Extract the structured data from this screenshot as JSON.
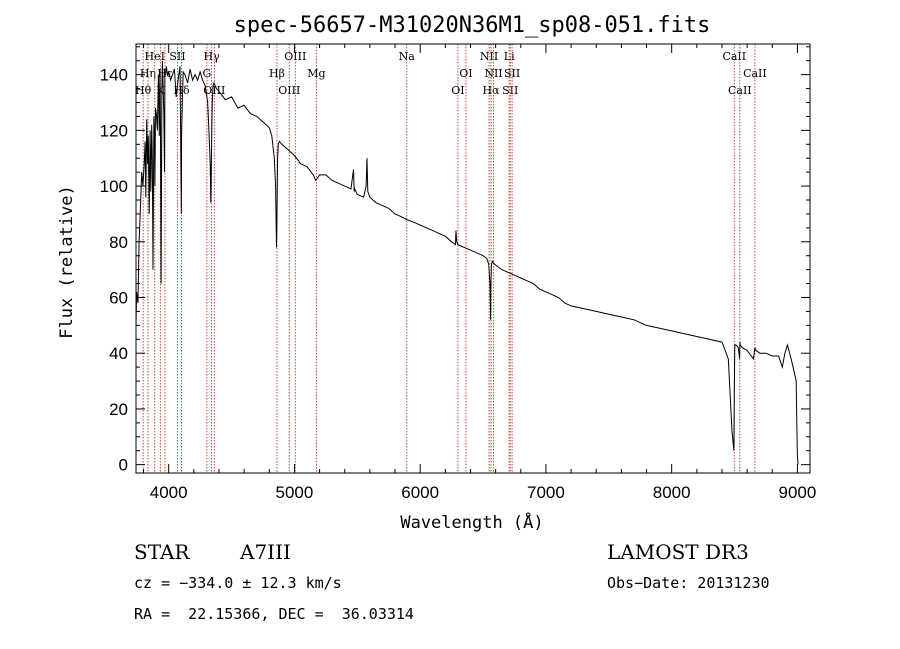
{
  "chart_data": {
    "type": "line",
    "title": "spec-56657-M31020N36M1_sp08-051.fits",
    "xlabel": "Wavelength (Å)",
    "ylabel": "Flux (relative)",
    "xlim": [
      3740,
      9100
    ],
    "ylim": [
      -3,
      151
    ],
    "xticks": [
      4000,
      5000,
      6000,
      7000,
      8000,
      9000
    ],
    "yticks": [
      0,
      20,
      40,
      60,
      80,
      100,
      120,
      140
    ],
    "series": [
      {
        "name": "spectrum",
        "x": [
          3740,
          3745,
          3755,
          3765,
          3775,
          3785,
          3795,
          3805,
          3812,
          3818,
          3825,
          3832,
          3838,
          3845,
          3852,
          3858,
          3865,
          3870,
          3875,
          3882,
          3888,
          3890,
          3895,
          3902,
          3910,
          3918,
          3925,
          3930,
          3935,
          3940,
          3946,
          3950,
          3955,
          3962,
          3967,
          3970,
          3975,
          3982,
          3990,
          4000,
          4015,
          4030,
          4045,
          4060,
          4075,
          4090,
          4095,
          4100,
          4103,
          4108,
          4115,
          4130,
          4150,
          4170,
          4190,
          4210,
          4230,
          4250,
          4270,
          4290,
          4310,
          4320,
          4330,
          4335,
          4340,
          4345,
          4352,
          4360,
          4380,
          4400,
          4450,
          4500,
          4550,
          4600,
          4650,
          4700,
          4750,
          4800,
          4820,
          4840,
          4850,
          4857,
          4861,
          4866,
          4872,
          4880,
          4900,
          4950,
          5000,
          5050,
          5100,
          5150,
          5170,
          5200,
          5250,
          5300,
          5350,
          5400,
          5450,
          5470,
          5475,
          5480,
          5500,
          5550,
          5570,
          5577,
          5583,
          5600,
          5650,
          5700,
          5750,
          5800,
          5850,
          5890,
          5950,
          6000,
          6050,
          6100,
          6150,
          6200,
          6250,
          6280,
          6285,
          6290,
          6300,
          6350,
          6400,
          6450,
          6500,
          6530,
          6545,
          6555,
          6560,
          6563,
          6567,
          6575,
          6590,
          6620,
          6650,
          6700,
          6750,
          6800,
          6850,
          6900,
          6950,
          7000,
          7050,
          7100,
          7150,
          7200,
          7300,
          7400,
          7500,
          7600,
          7700,
          7800,
          7900,
          8000,
          8100,
          8200,
          8300,
          8400,
          8450,
          8480,
          8495,
          8498,
          8502,
          8510,
          8530,
          8540,
          8543,
          8546,
          8560,
          8600,
          8650,
          8662,
          8670,
          8700,
          8750,
          8800,
          8850,
          8880,
          8900,
          8920,
          8950,
          8970,
          8990,
          8995,
          9000,
          9005
        ],
        "values": [
          50,
          62,
          58,
          80,
          92,
          105,
          100,
          108,
          116,
          96,
          124,
          108,
          118,
          90,
          120,
          98,
          122,
          110,
          70,
          125,
          118,
          100,
          128,
          126,
          120,
          140,
          118,
          142,
          120,
          65,
          135,
          145,
          138,
          125,
          105,
          140,
          140,
          143,
          140,
          141,
          138,
          140,
          142,
          132,
          138,
          143,
          120,
          90,
          118,
          130,
          141,
          140,
          137,
          142,
          138,
          140,
          138,
          141,
          138,
          136,
          130,
          120,
          108,
          94,
          110,
          128,
          136,
          137,
          135,
          134,
          131,
          132,
          128,
          129,
          126,
          125,
          123,
          121,
          118,
          110,
          100,
          78,
          90,
          110,
          115,
          116,
          115,
          113,
          111,
          108,
          107,
          104,
          102,
          104,
          104,
          102,
          101,
          100,
          99,
          106,
          98,
          99,
          97,
          96,
          100,
          110,
          98,
          96,
          94,
          93,
          92,
          90,
          89,
          88,
          87,
          86,
          85,
          84,
          83,
          82,
          80,
          79,
          84,
          80,
          79,
          78,
          77,
          76,
          75,
          74,
          72,
          65,
          52,
          66,
          72,
          73,
          72,
          71,
          70,
          69,
          68,
          67,
          66,
          65,
          63,
          62,
          61,
          60,
          58,
          57,
          56,
          55,
          54,
          53,
          52,
          50,
          49,
          48,
          47,
          46,
          45,
          44,
          38,
          12,
          5,
          25,
          43,
          43,
          42,
          38,
          44,
          43,
          42,
          41,
          38,
          42,
          41,
          40,
          40,
          39,
          39,
          35,
          40,
          43,
          38,
          34,
          30,
          15,
          3,
          0
        ]
      }
    ],
    "spectral_lines": [
      {
        "name": "Hθ",
        "wavelength": 3797,
        "row": 3
      },
      {
        "name": "Hη",
        "wavelength": 3835,
        "row": 2
      },
      {
        "name": "HeI",
        "wavelength": 3889,
        "row": 1
      },
      {
        "name": "K",
        "wavelength": 3934,
        "row": 3
      },
      {
        "name": "Hε",
        "wavelength": 3970,
        "row": 2
      },
      {
        "name": "SII",
        "wavelength": 4070,
        "row": 1
      },
      {
        "name": "Hδ",
        "wavelength": 4102,
        "row": 3
      },
      {
        "name": "G",
        "wavelength": 4304,
        "row": 2
      },
      {
        "name": "Hγ",
        "wavelength": 4341,
        "row": 1
      },
      {
        "name": "OIII",
        "wavelength": 4363,
        "row": 3
      },
      {
        "name": "Hβ",
        "wavelength": 4861,
        "row": 2
      },
      {
        "name": "OIII",
        "wavelength": 4959,
        "row": 3
      },
      {
        "name": "OIII",
        "wavelength": 5007,
        "row": 1
      },
      {
        "name": "Mg",
        "wavelength": 5175,
        "row": 2
      },
      {
        "name": "Na",
        "wavelength": 5893,
        "row": 1
      },
      {
        "name": "OI",
        "wavelength": 6300,
        "row": 3
      },
      {
        "name": "OI",
        "wavelength": 6364,
        "row": 2
      },
      {
        "name": "NII",
        "wavelength": 6548,
        "row": 1
      },
      {
        "name": "Hα",
        "wavelength": 6563,
        "row": 3
      },
      {
        "name": "NII",
        "wavelength": 6583,
        "row": 2
      },
      {
        "name": "Li",
        "wavelength": 6708,
        "row": 1
      },
      {
        "name": "SII",
        "wavelength": 6716,
        "row": 3
      },
      {
        "name": "SII",
        "wavelength": 6731,
        "row": 2
      },
      {
        "name": "CaII",
        "wavelength": 8498,
        "row": 1
      },
      {
        "name": "CaII",
        "wavelength": 8542,
        "row": 3
      },
      {
        "name": "CaII",
        "wavelength": 8662,
        "row": 2
      }
    ],
    "colors": {
      "spectrum": "#000000",
      "lines": "#c0392b",
      "axes": "#000000"
    }
  },
  "info": {
    "object_type": "STAR",
    "spectral_class": "A7III",
    "survey": "LAMOST DR3",
    "velocity": "cz = −334.0 ± 12.3 km/s",
    "obs_date": "Obs−Date: 20131230",
    "coords": "RA =  22.15366, DEC =  36.03314"
  }
}
